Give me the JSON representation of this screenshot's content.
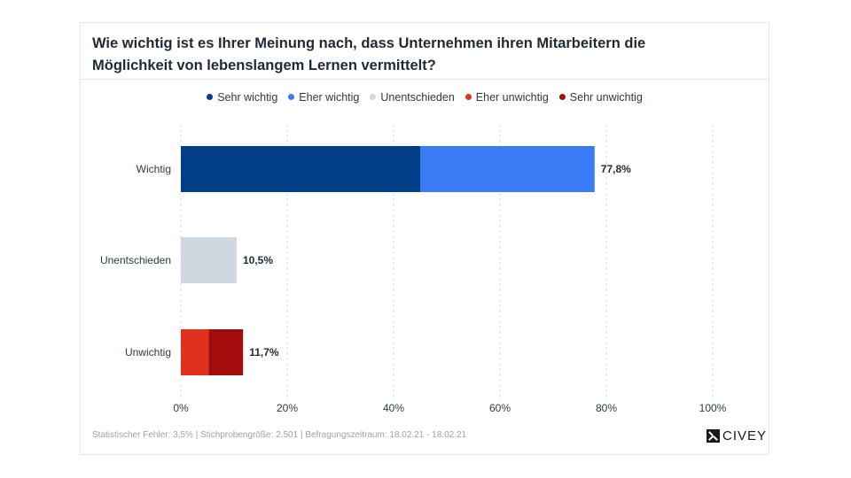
{
  "chart_data": {
    "type": "bar",
    "orientation": "horizontal",
    "stacked": true,
    "title": "Wie wichtig ist es Ihrer Meinung nach, dass Unternehmen ihren Mitarbeitern die Möglichkeit von lebenslangem Lernen vermittelt?",
    "categories": [
      "Wichtig",
      "Unentschieden",
      "Unwichtig"
    ],
    "totals": [
      "77,8%",
      "10,5%",
      "11,7%"
    ],
    "series": [
      {
        "name": "Sehr wichtig",
        "color": "#003f87",
        "values": [
          45.0,
          0,
          0
        ]
      },
      {
        "name": "Eher wichtig",
        "color": "#3b7af5",
        "values": [
          32.8,
          0,
          0
        ]
      },
      {
        "name": "Unentschieden",
        "color": "#cfd8e0",
        "values": [
          0,
          10.5,
          0
        ]
      },
      {
        "name": "Eher unwichtig",
        "color": "#e0301e",
        "values": [
          0,
          0,
          5.2
        ]
      },
      {
        "name": "Sehr unwichtig",
        "color": "#a30c0c",
        "values": [
          0,
          0,
          6.5
        ]
      }
    ],
    "xlim": [
      0,
      100
    ],
    "xticks": [
      0,
      20,
      40,
      60,
      80,
      100
    ],
    "xtick_labels": [
      "0%",
      "20%",
      "40%",
      "60%",
      "80%",
      "100%"
    ],
    "grid": "vertical-dashed",
    "legend_position": "top"
  },
  "footer": {
    "text": "Statistischer Fehler: 3,5% | Stichprobengröße: 2.501 | Befragungszeitraum: 18.02.21 - 18.02.21"
  },
  "brand": {
    "name": "CIVEY",
    "icon": "civey-logo-icon"
  }
}
